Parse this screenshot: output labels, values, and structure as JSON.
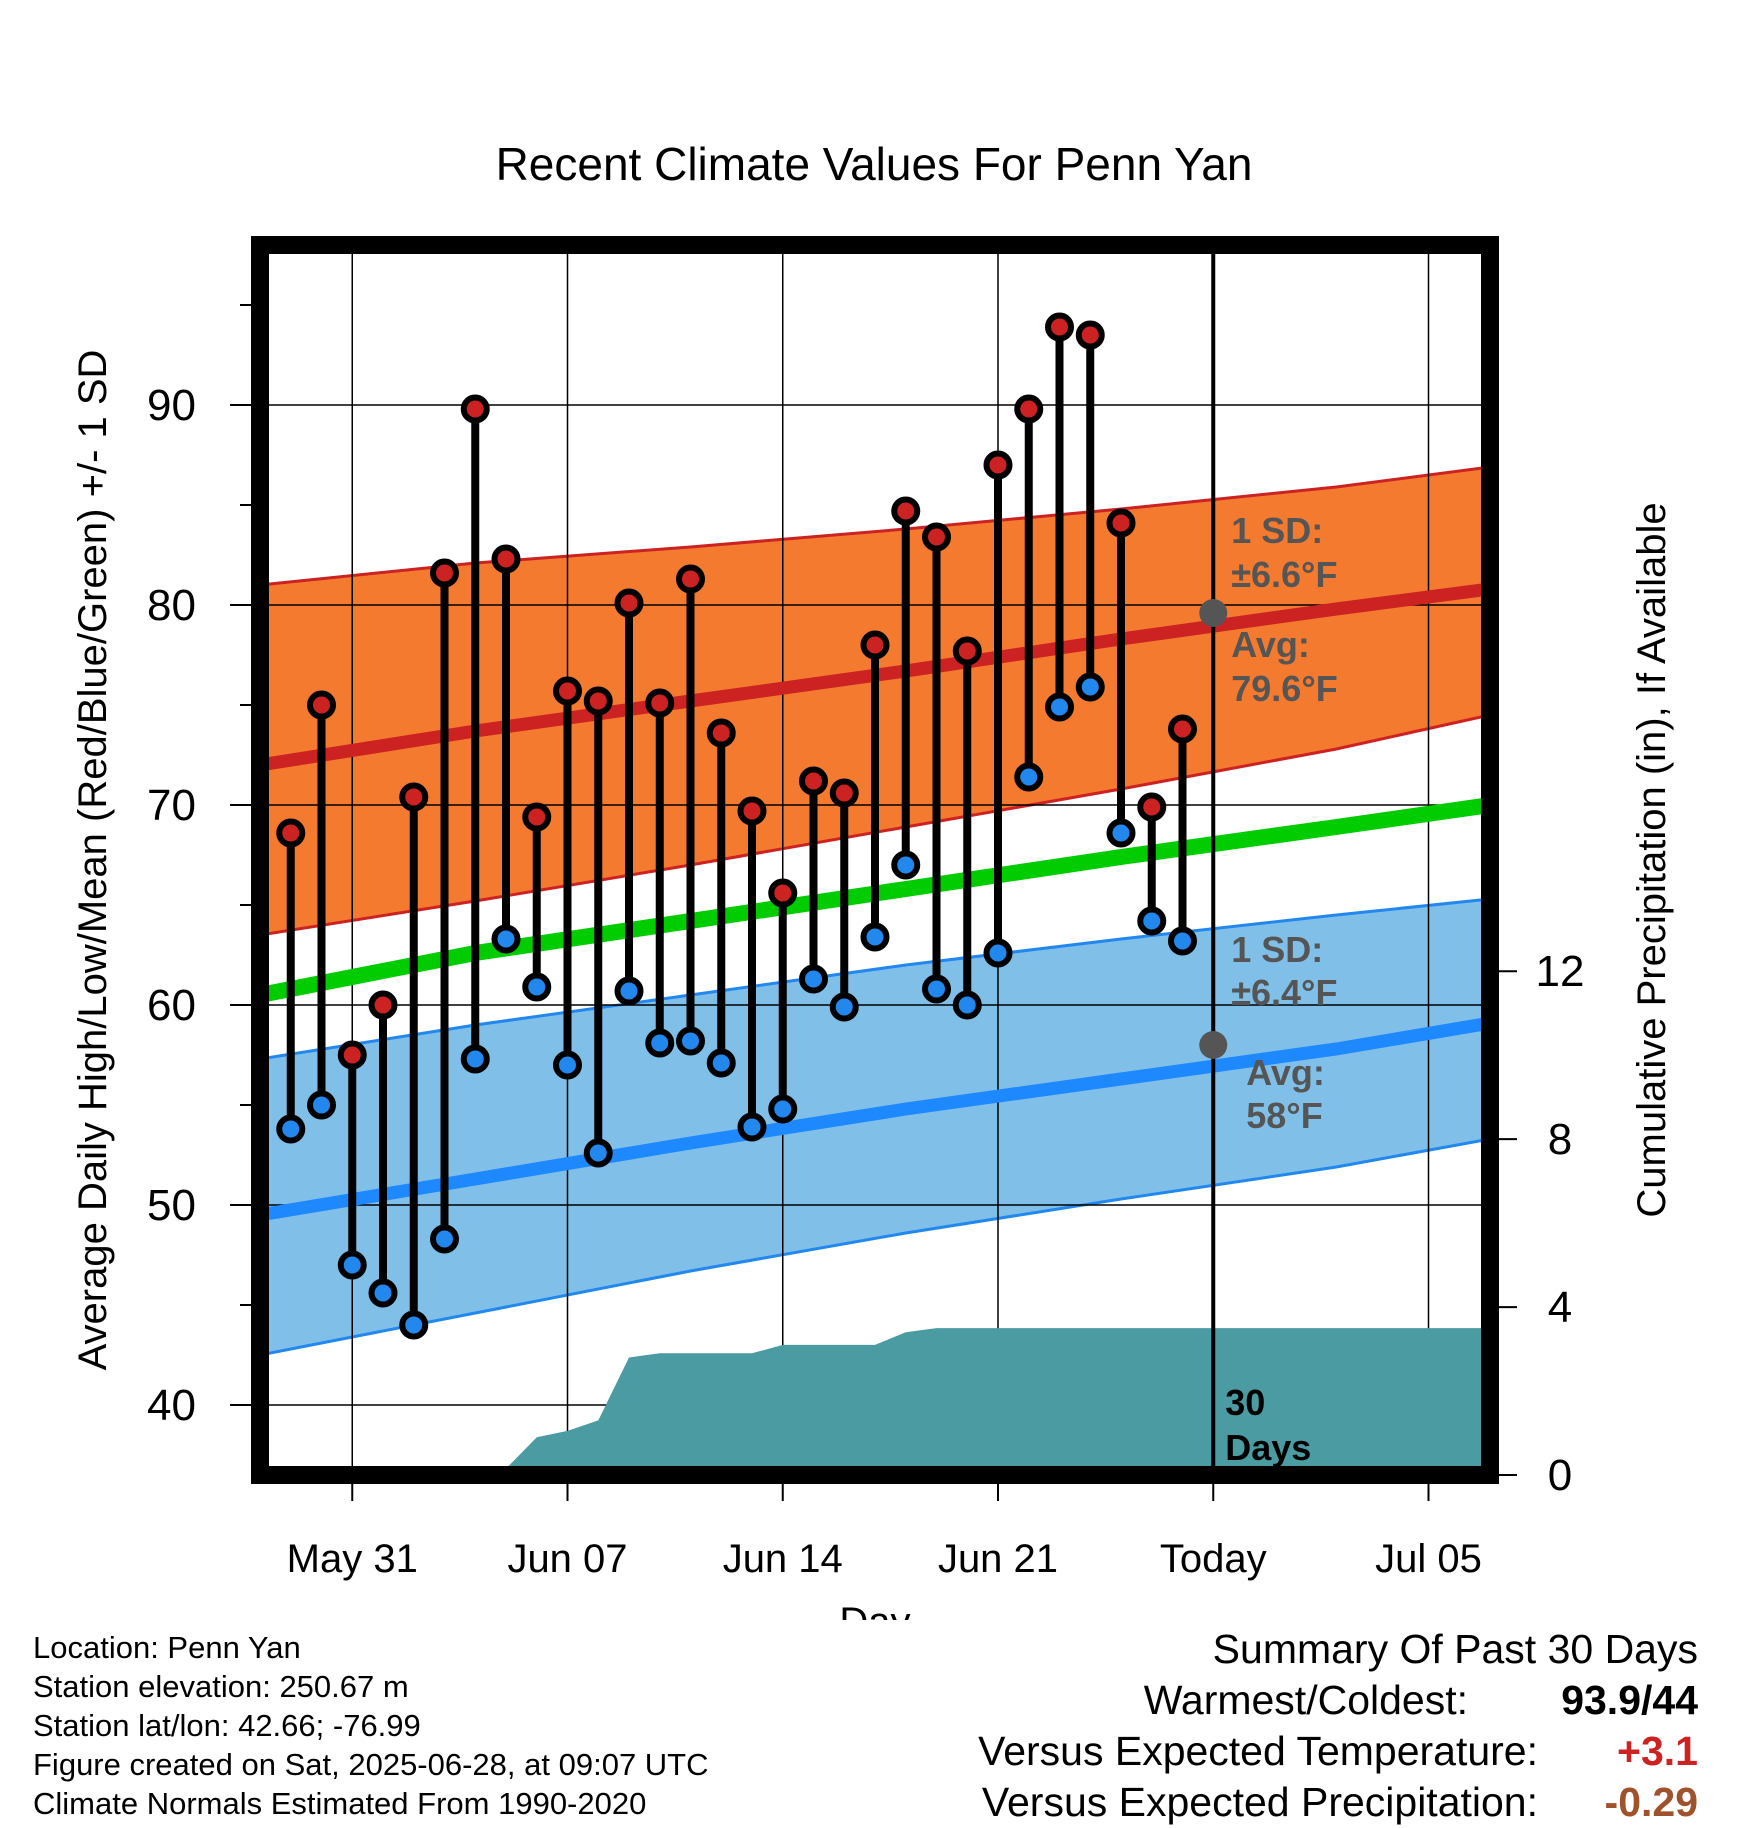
{
  "chart_data": {
    "type": "line",
    "title": "Recent Climate Values For Penn Yan",
    "xlabel": "Day",
    "ylabel": "Average Daily High/Low/Mean (Red/Blue/Green) +/- 1 SD",
    "y2label": "Cumulative Precipitation (in), If Available",
    "xlim": [
      "2025-05-28",
      "2025-07-07"
    ],
    "ylim": [
      36.5,
      98
    ],
    "y2lim": [
      0,
      29.3
    ],
    "x_ticks": [
      "May 31",
      "Jun 07",
      "Jun 14",
      "Jun 21",
      "Today",
      "Jul 05"
    ],
    "x_tick_dates": [
      "2025-05-31",
      "2025-06-07",
      "2025-06-14",
      "2025-06-21",
      "2025-06-28",
      "2025-07-05"
    ],
    "y_ticks": [
      40,
      50,
      60,
      70,
      80,
      90
    ],
    "y2_ticks": [
      0,
      4,
      8,
      12
    ],
    "grid": true,
    "days": [
      "2025-05-29",
      "2025-05-30",
      "2025-05-31",
      "2025-06-01",
      "2025-06-02",
      "2025-06-03",
      "2025-06-04",
      "2025-06-05",
      "2025-06-06",
      "2025-06-07",
      "2025-06-08",
      "2025-06-09",
      "2025-06-10",
      "2025-06-11",
      "2025-06-12",
      "2025-06-13",
      "2025-06-14",
      "2025-06-15",
      "2025-06-16",
      "2025-06-17",
      "2025-06-18",
      "2025-06-19",
      "2025-06-20",
      "2025-06-21",
      "2025-06-22",
      "2025-06-23",
      "2025-06-24",
      "2025-06-25",
      "2025-06-26",
      "2025-06-27"
    ],
    "series": [
      {
        "name": "High",
        "color": "#cc2222",
        "values": [
          68.6,
          75.0,
          57.5,
          60.0,
          70.4,
          81.6,
          89.8,
          82.3,
          69.4,
          75.7,
          75.2,
          80.1,
          75.1,
          81.3,
          73.6,
          69.7,
          65.6,
          71.2,
          70.6,
          78.0,
          84.7,
          83.4,
          77.7,
          87.0,
          89.8,
          93.9,
          93.5,
          84.1,
          69.9,
          73.8
        ]
      },
      {
        "name": "Low",
        "color": "#2288ee",
        "values": [
          53.8,
          55.0,
          47.0,
          45.6,
          44.0,
          48.3,
          57.3,
          63.3,
          60.9,
          57.0,
          52.6,
          60.7,
          58.1,
          58.2,
          57.1,
          53.9,
          54.8,
          61.3,
          59.9,
          63.4,
          67.0,
          60.8,
          60.0,
          62.6,
          71.4,
          74.9,
          75.9,
          68.6,
          64.2,
          63.2
        ]
      }
    ],
    "normals": {
      "dates": [
        "2025-05-28",
        "2025-06-04",
        "2025-06-11",
        "2025-06-18",
        "2025-06-25",
        "2025-07-02",
        "2025-07-07"
      ],
      "high_avg": [
        72.0,
        73.7,
        75.2,
        76.7,
        78.3,
        79.8,
        80.8
      ],
      "high_upper": [
        81.0,
        82.1,
        82.9,
        83.8,
        84.8,
        85.9,
        86.9
      ],
      "high_lower": [
        63.5,
        65.2,
        67.0,
        68.9,
        70.8,
        72.8,
        74.5
      ],
      "mean_avg": [
        60.5,
        62.6,
        64.2,
        65.8,
        67.4,
        68.9,
        70.0
      ],
      "low_avg": [
        49.5,
        51.3,
        53.1,
        54.8,
        56.3,
        57.8,
        59.1
      ],
      "low_upper": [
        57.3,
        59.0,
        60.5,
        62.0,
        63.3,
        64.5,
        65.3
      ],
      "low_lower": [
        42.5,
        44.6,
        46.7,
        48.6,
        50.3,
        51.9,
        53.3
      ],
      "high_color": "#f47a30",
      "low_color": "#80c0e8",
      "mean_color": "#00cc00"
    },
    "precip_cumulative": {
      "color": "#4a9ba2",
      "dates": [
        "2025-05-28",
        "2025-06-04",
        "2025-06-05",
        "2025-06-06",
        "2025-06-07",
        "2025-06-08",
        "2025-06-09",
        "2025-06-10",
        "2025-06-11",
        "2025-06-12",
        "2025-06-13",
        "2025-06-14",
        "2025-06-15",
        "2025-06-16",
        "2025-06-17",
        "2025-06-18",
        "2025-06-19",
        "2025-06-20",
        "2025-07-07"
      ],
      "values": [
        0,
        0,
        0.15,
        0.9,
        1.05,
        1.3,
        2.8,
        2.9,
        2.9,
        2.9,
        2.9,
        3.1,
        3.1,
        3.1,
        3.1,
        3.4,
        3.5,
        3.5,
        3.5
      ]
    },
    "today_marker": {
      "date": "2025-06-28",
      "label": "30 Days"
    },
    "annotations": {
      "high_sd_label": "1 SD:",
      "high_sd_value": "±6.6°F",
      "high_avg_label": "Avg:",
      "high_avg_value": "79.6°F",
      "high_avg_today": 79.6,
      "low_sd_label": "1 SD:",
      "low_sd_value": "±6.4°F",
      "low_avg_label": "Avg:",
      "low_avg_value": "58°F",
      "low_avg_today": 58.0
    }
  },
  "footer": {
    "location": "Location: Penn Yan",
    "elevation": "Station elevation: 250.67 m",
    "latlon": "Station lat/lon: 42.66; -76.99",
    "created": "Figure created on Sat, 2025-06-28, at 09:07 UTC",
    "normals": "Climate Normals Estimated From 1990-2020"
  },
  "summary": {
    "title": "Summary Of Past 30 Days",
    "warmest_label": "Warmest/Coldest:",
    "warmest_value": "93.9/44",
    "temp_label": "Versus Expected Temperature:",
    "temp_value": "+3.1",
    "temp_color": "#cc2222",
    "precip_label": "Versus Expected Precipitation:",
    "precip_value": "-0.29",
    "precip_color": "#a0522d"
  }
}
